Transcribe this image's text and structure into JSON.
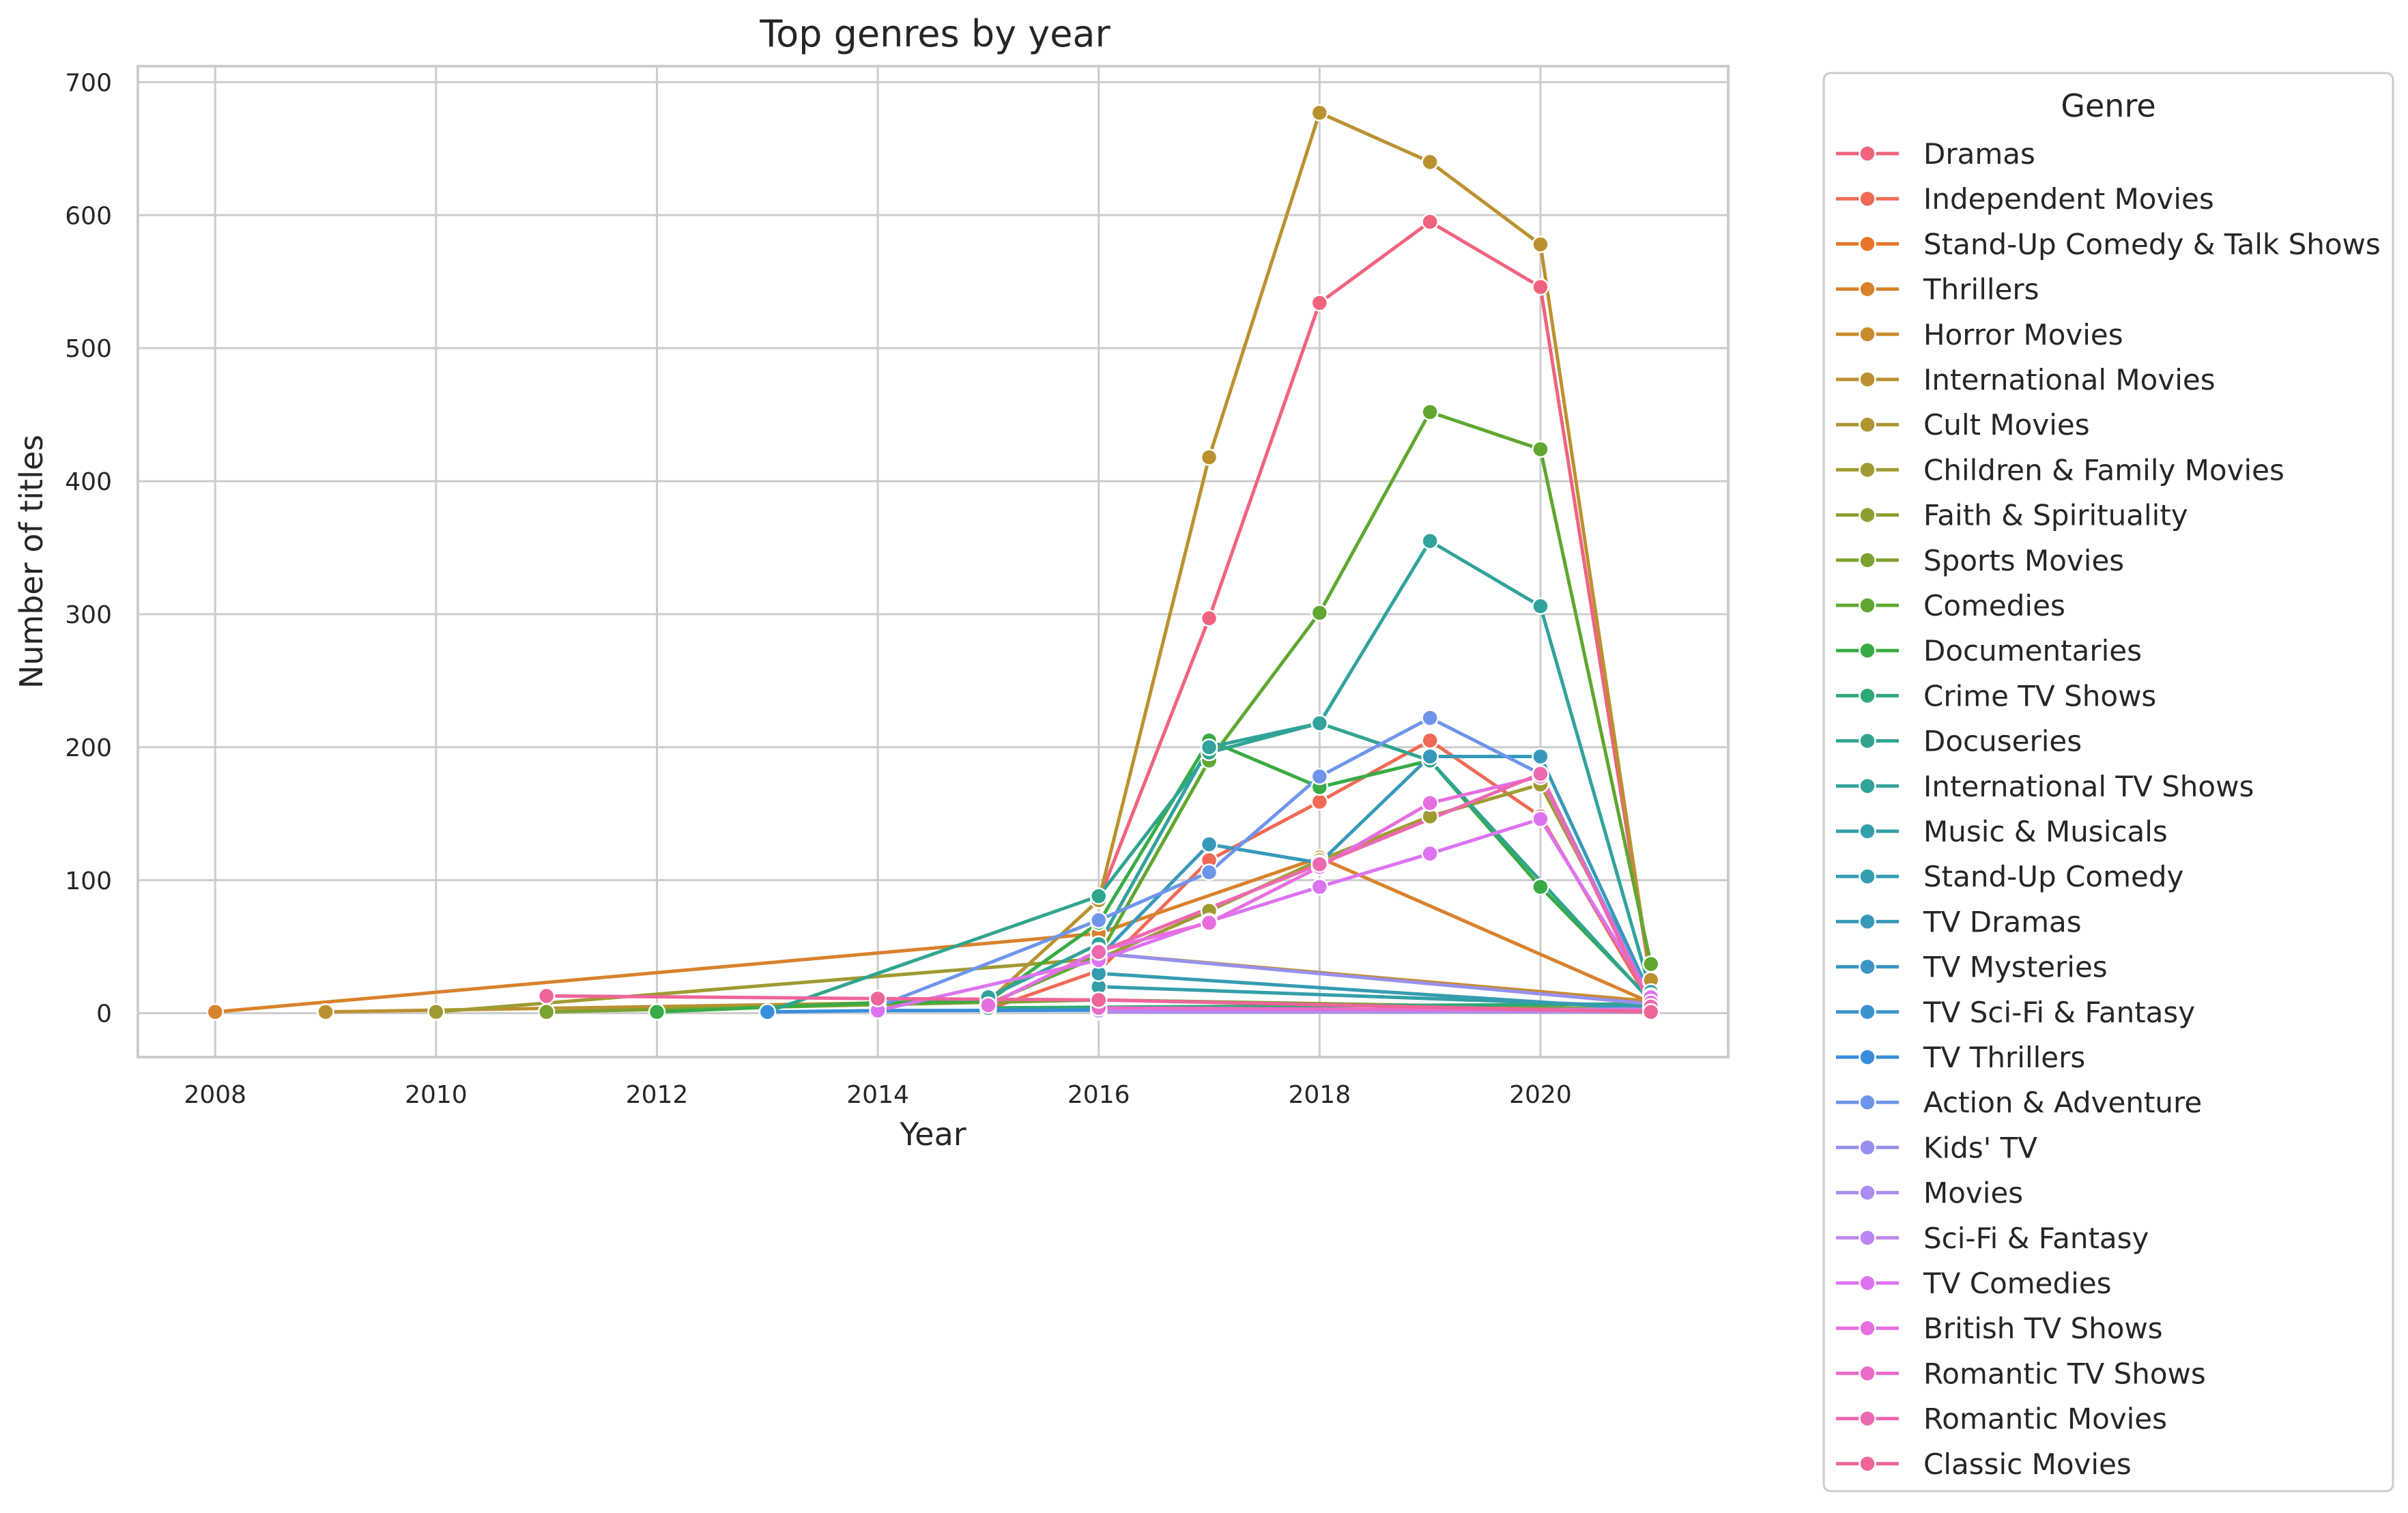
{
  "chart_data": {
    "type": "line",
    "title": "Top genres by year",
    "xlabel": "Year",
    "ylabel": "Number of titles",
    "xlim": [
      2007.3,
      2021.7
    ],
    "ylim": [
      -33,
      712
    ],
    "xticks": [
      2008,
      2010,
      2012,
      2014,
      2016,
      2018,
      2020
    ],
    "yticks": [
      0,
      100,
      200,
      300,
      400,
      500,
      600,
      700
    ],
    "grid": true,
    "legend_title": "Genre",
    "legend_position": "outside right",
    "series": [
      {
        "name": "Dramas",
        "color": "#f0637e",
        "points": [
          [
            2016,
            85
          ],
          [
            2017,
            297
          ],
          [
            2018,
            534
          ],
          [
            2019,
            595
          ],
          [
            2020,
            546
          ],
          [
            2021,
            24
          ]
        ]
      },
      {
        "name": "Independent Movies",
        "color": "#ee6a55",
        "points": [
          [
            2015,
            3
          ],
          [
            2016,
            32
          ],
          [
            2017,
            115
          ],
          [
            2018,
            159
          ],
          [
            2019,
            205
          ],
          [
            2020,
            148
          ],
          [
            2021,
            7
          ]
        ]
      },
      {
        "name": "Stand-Up Comedy & Talk Shows",
        "color": "#e87429",
        "points": [
          [
            2021,
            5
          ]
        ]
      },
      {
        "name": "Thrillers",
        "color": "#d8822c",
        "points": [
          [
            2008,
            1
          ],
          [
            2016,
            60
          ],
          [
            2018,
            117
          ],
          [
            2021,
            8
          ]
        ]
      },
      {
        "name": "Horror Movies",
        "color": "#c98b2c",
        "points": [
          [
            2016,
            45
          ],
          [
            2021,
            9
          ]
        ]
      },
      {
        "name": "International Movies",
        "color": "#bb9130",
        "points": [
          [
            2009,
            1
          ],
          [
            2015,
            9
          ],
          [
            2016,
            85
          ],
          [
            2017,
            418
          ],
          [
            2018,
            677
          ],
          [
            2019,
            640
          ],
          [
            2020,
            578
          ],
          [
            2021,
            25
          ]
        ]
      },
      {
        "name": "Cult Movies",
        "color": "#ad9632",
        "points": [
          [
            2016,
            3
          ],
          [
            2021,
            2
          ]
        ]
      },
      {
        "name": "Children & Family Movies",
        "color": "#9f9b32",
        "points": [
          [
            2010,
            1
          ],
          [
            2016,
            41
          ],
          [
            2017,
            77
          ],
          [
            2018,
            115
          ],
          [
            2019,
            148
          ],
          [
            2020,
            172
          ],
          [
            2021,
            15
          ]
        ]
      },
      {
        "name": "Faith & Spirituality",
        "color": "#8f9e31",
        "points": [
          [
            2016,
            2
          ],
          [
            2021,
            1
          ]
        ]
      },
      {
        "name": "Sports Movies",
        "color": "#7ca230",
        "points": [
          [
            2011,
            1
          ],
          [
            2016,
            10
          ],
          [
            2021,
            3
          ]
        ]
      },
      {
        "name": "Comedies",
        "color": "#5fa730",
        "points": [
          [
            2015,
            7
          ],
          [
            2016,
            43
          ],
          [
            2017,
            190
          ],
          [
            2018,
            301
          ],
          [
            2019,
            452
          ],
          [
            2020,
            424
          ],
          [
            2021,
            37
          ]
        ]
      },
      {
        "name": "Documentaries",
        "color": "#38ab45",
        "points": [
          [
            2012,
            1
          ],
          [
            2014,
            8
          ],
          [
            2015,
            9
          ],
          [
            2016,
            68
          ],
          [
            2017,
            205
          ],
          [
            2018,
            170
          ],
          [
            2019,
            190
          ],
          [
            2020,
            95
          ],
          [
            2021,
            10
          ]
        ]
      },
      {
        "name": "Crime TV Shows",
        "color": "#30a878",
        "points": [
          [
            2015,
            4
          ],
          [
            2021,
            7
          ]
        ]
      },
      {
        "name": "Docuseries",
        "color": "#31a48f",
        "points": [
          [
            2013,
            1
          ],
          [
            2016,
            88
          ],
          [
            2017,
            196
          ],
          [
            2018,
            218
          ],
          [
            2019,
            190
          ],
          [
            2021,
            9
          ]
        ]
      },
      {
        "name": "International TV Shows",
        "color": "#32a29c",
        "points": [
          [
            2015,
            12
          ],
          [
            2016,
            52
          ],
          [
            2017,
            200
          ],
          [
            2018,
            218
          ],
          [
            2019,
            355
          ],
          [
            2020,
            306
          ],
          [
            2021,
            16
          ]
        ]
      },
      {
        "name": "Music & Musicals",
        "color": "#339fa7",
        "points": [
          [
            2016,
            20
          ],
          [
            2021,
            5
          ]
        ]
      },
      {
        "name": "Stand-Up Comedy",
        "color": "#359cb1",
        "points": [
          [
            2016,
            30
          ],
          [
            2021,
            3
          ]
        ]
      },
      {
        "name": "TV Dramas",
        "color": "#3799ba",
        "points": [
          [
            2016,
            42
          ],
          [
            2017,
            127
          ],
          [
            2018,
            113
          ],
          [
            2019,
            193
          ],
          [
            2020,
            193
          ],
          [
            2021,
            13
          ]
        ]
      },
      {
        "name": "TV Mysteries",
        "color": "#3a96c4",
        "points": [
          [
            2021,
            2
          ]
        ]
      },
      {
        "name": "TV Sci-Fi & Fantasy",
        "color": "#3c92cf",
        "points": [
          [
            2021,
            4
          ]
        ]
      },
      {
        "name": "TV Thrillers",
        "color": "#378edc",
        "points": [
          [
            2013,
            1
          ],
          [
            2014,
            2
          ],
          [
            2021,
            3
          ]
        ]
      },
      {
        "name": "Action & Adventure",
        "color": "#6e95ea",
        "points": [
          [
            2014,
            5
          ],
          [
            2016,
            70
          ],
          [
            2017,
            106
          ],
          [
            2018,
            178
          ],
          [
            2019,
            222
          ],
          [
            2020,
            180
          ],
          [
            2021,
            10
          ]
        ]
      },
      {
        "name": "Kids' TV",
        "color": "#9690ee",
        "points": [
          [
            2016,
            45
          ],
          [
            2021,
            7
          ]
        ]
      },
      {
        "name": "Movies",
        "color": "#a98df0",
        "points": [
          [
            2016,
            1
          ],
          [
            2021,
            1
          ]
        ]
      },
      {
        "name": "Sci-Fi & Fantasy",
        "color": "#bc86f2",
        "points": [
          [
            2016,
            2
          ],
          [
            2021,
            3
          ]
        ]
      },
      {
        "name": "TV Comedies",
        "color": "#dc73f0",
        "points": [
          [
            2014,
            2
          ],
          [
            2016,
            40
          ],
          [
            2017,
            69
          ],
          [
            2018,
            95
          ],
          [
            2019,
            120
          ],
          [
            2020,
            146
          ],
          [
            2021,
            12
          ]
        ]
      },
      {
        "name": "British TV Shows",
        "color": "#e76ee0",
        "points": [
          [
            2015,
            6
          ],
          [
            2016,
            47
          ],
          [
            2017,
            68
          ],
          [
            2018,
            110
          ],
          [
            2019,
            158
          ],
          [
            2020,
            178
          ],
          [
            2021,
            8
          ]
        ]
      },
      {
        "name": "Romantic TV Shows",
        "color": "#ea6bc8",
        "points": [
          [
            2016,
            4
          ],
          [
            2021,
            2
          ]
        ]
      },
      {
        "name": "Romantic Movies",
        "color": "#ec69b0",
        "points": [
          [
            2016,
            46
          ],
          [
            2018,
            112
          ],
          [
            2020,
            180
          ],
          [
            2021,
            5
          ]
        ]
      },
      {
        "name": "Classic Movies",
        "color": "#ee659a",
        "points": [
          [
            2011,
            13
          ],
          [
            2014,
            11
          ],
          [
            2016,
            10
          ],
          [
            2021,
            1
          ]
        ]
      }
    ]
  }
}
